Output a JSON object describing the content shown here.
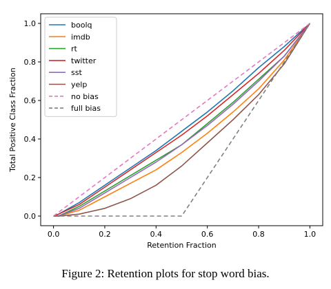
{
  "caption": "Figure 2: Retention plots for stop word bias.",
  "chart_data": {
    "type": "line",
    "xlabel": "Retention Fraction",
    "ylabel": "Total Positive Class Fraction",
    "xlim": [
      -0.05,
      1.05
    ],
    "ylim": [
      -0.05,
      1.05
    ],
    "xticks": [
      "0.0",
      "0.2",
      "0.4",
      "0.6",
      "0.8",
      "1.0"
    ],
    "yticks": [
      "0.0",
      "0.2",
      "0.4",
      "0.6",
      "0.8",
      "1.0"
    ],
    "grid": false,
    "legend_position": "top-left",
    "series": [
      {
        "name": "boolq",
        "color": "#1f77b4",
        "dash": "solid",
        "x": [
          0,
          0.02,
          0.1,
          0.2,
          0.3,
          0.4,
          0.5,
          0.6,
          0.7,
          0.8,
          0.9,
          1.0
        ],
        "y": [
          0,
          0.01,
          0.07,
          0.16,
          0.25,
          0.34,
          0.44,
          0.54,
          0.65,
          0.77,
          0.88,
          1.0
        ]
      },
      {
        "name": "imdb",
        "color": "#ff7f0e",
        "dash": "solid",
        "x": [
          0,
          0.02,
          0.1,
          0.2,
          0.3,
          0.4,
          0.5,
          0.6,
          0.7,
          0.8,
          0.9,
          1.0
        ],
        "y": [
          0,
          0.0,
          0.03,
          0.1,
          0.17,
          0.24,
          0.33,
          0.43,
          0.54,
          0.66,
          0.81,
          1.0
        ]
      },
      {
        "name": "rt",
        "color": "#2ca02c",
        "dash": "solid",
        "x": [
          0,
          0.02,
          0.1,
          0.2,
          0.3,
          0.4,
          0.5,
          0.6,
          0.7,
          0.8,
          0.9,
          1.0
        ],
        "y": [
          0,
          0.0,
          0.05,
          0.13,
          0.21,
          0.29,
          0.37,
          0.48,
          0.59,
          0.71,
          0.83,
          1.0
        ]
      },
      {
        "name": "twitter",
        "color": "#d62728",
        "dash": "solid",
        "x": [
          0,
          0.02,
          0.1,
          0.2,
          0.3,
          0.4,
          0.5,
          0.6,
          0.7,
          0.8,
          0.9,
          1.0
        ],
        "y": [
          0,
          0.01,
          0.06,
          0.15,
          0.24,
          0.33,
          0.42,
          0.52,
          0.63,
          0.74,
          0.86,
          1.0
        ]
      },
      {
        "name": "sst",
        "color": "#9467bd",
        "dash": "solid",
        "x": [
          0,
          0.02,
          0.1,
          0.2,
          0.3,
          0.4,
          0.5,
          0.6,
          0.7,
          0.8,
          0.9,
          1.0
        ],
        "y": [
          0,
          0.0,
          0.04,
          0.12,
          0.2,
          0.28,
          0.37,
          0.47,
          0.58,
          0.7,
          0.83,
          1.0
        ]
      },
      {
        "name": "yelp",
        "color": "#8c564b",
        "dash": "solid",
        "x": [
          0,
          0.02,
          0.1,
          0.2,
          0.3,
          0.4,
          0.5,
          0.6,
          0.7,
          0.8,
          0.9,
          1.0
        ],
        "y": [
          0,
          0.0,
          0.01,
          0.04,
          0.09,
          0.16,
          0.26,
          0.38,
          0.5,
          0.63,
          0.79,
          1.0
        ]
      },
      {
        "name": "no bias",
        "color": "#e377c2",
        "dash": "dashed",
        "x": [
          0,
          1.0
        ],
        "y": [
          0,
          1.0
        ]
      },
      {
        "name": "full bias",
        "color": "#7f7f7f",
        "dash": "dashed",
        "x": [
          0,
          0.5,
          1.0
        ],
        "y": [
          0,
          0,
          1.0
        ]
      }
    ]
  }
}
